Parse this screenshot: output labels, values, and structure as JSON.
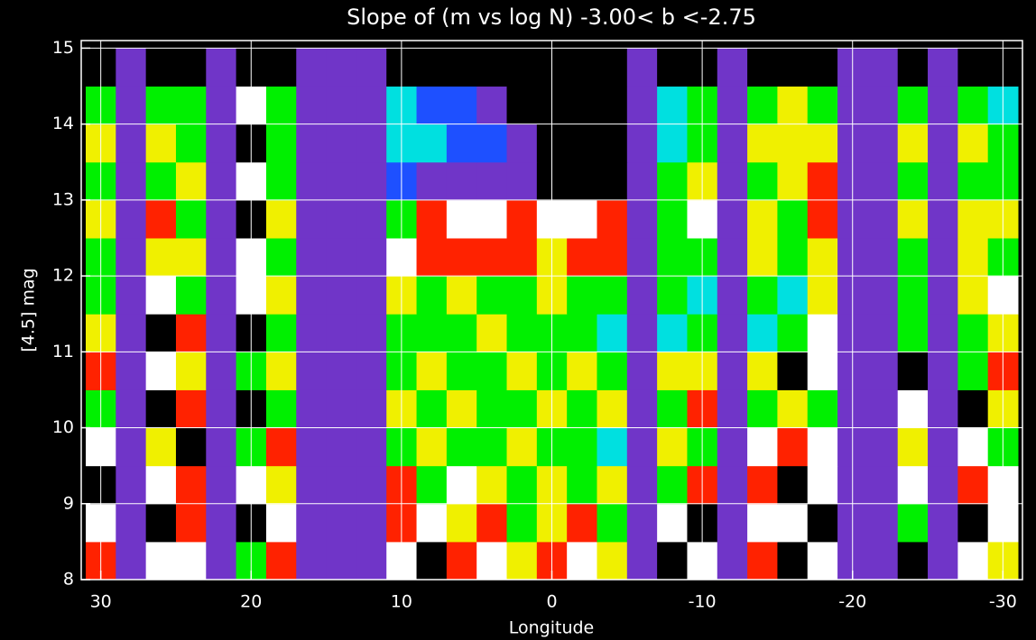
{
  "chart_data": {
    "type": "heatmap",
    "title": "Slope of (m vs log N) -3.00< b <-2.75",
    "xlabel": "Longitude",
    "ylabel": "[4.5] mag",
    "xlim": [
      31.3,
      -31.3
    ],
    "ylim": [
      8,
      15.1
    ],
    "xticks": [
      30,
      20,
      10,
      0,
      -10,
      -20,
      -30
    ],
    "yticks": [
      8,
      9,
      10,
      11,
      12,
      13,
      14,
      15
    ],
    "grid": true,
    "grid_color": "#ffffff",
    "colorscale": [
      "#000000",
      "#7035c8",
      "#1e50ff",
      "#00e0e0",
      "#00f000",
      "#f0f000",
      "#ff2200",
      "#ffffff"
    ],
    "x": [
      30,
      28,
      26,
      24,
      22,
      20,
      18,
      16,
      14,
      12,
      10,
      8,
      6,
      4,
      2,
      0,
      -2,
      -4,
      -6,
      -8,
      -10,
      -12,
      -14,
      -16,
      -18,
      -20,
      -22,
      -24,
      -26,
      -28,
      -30
    ],
    "y": [
      8.25,
      8.75,
      9.25,
      9.75,
      10.25,
      10.75,
      11.25,
      11.75,
      12.25,
      12.75,
      13.25,
      13.75,
      14.25,
      14.75
    ],
    "z": [
      [
        6,
        1,
        7,
        7,
        1,
        4,
        6,
        1,
        1,
        1,
        7,
        0,
        6,
        7,
        5,
        6,
        7,
        5,
        1,
        0,
        7,
        1,
        6,
        0,
        7,
        1,
        1,
        0,
        1,
        7,
        5
      ],
      [
        7,
        1,
        0,
        6,
        1,
        0,
        7,
        1,
        1,
        1,
        6,
        7,
        5,
        6,
        4,
        5,
        6,
        4,
        1,
        7,
        0,
        1,
        7,
        7,
        0,
        1,
        1,
        4,
        1,
        0,
        7
      ],
      [
        0,
        1,
        7,
        6,
        1,
        7,
        5,
        1,
        1,
        1,
        6,
        4,
        7,
        5,
        4,
        5,
        4,
        5,
        1,
        4,
        6,
        1,
        6,
        0,
        7,
        1,
        1,
        7,
        1,
        6,
        7
      ],
      [
        7,
        1,
        5,
        0,
        1,
        4,
        6,
        1,
        1,
        1,
        4,
        5,
        4,
        4,
        5,
        4,
        4,
        3,
        1,
        5,
        4,
        1,
        7,
        6,
        7,
        1,
        1,
        5,
        1,
        7,
        4
      ],
      [
        4,
        1,
        0,
        6,
        1,
        0,
        4,
        1,
        1,
        1,
        5,
        4,
        5,
        4,
        4,
        5,
        4,
        5,
        1,
        4,
        6,
        1,
        4,
        5,
        4,
        1,
        1,
        7,
        1,
        0,
        5
      ],
      [
        6,
        1,
        7,
        5,
        1,
        4,
        5,
        1,
        1,
        1,
        4,
        5,
        4,
        4,
        5,
        4,
        5,
        4,
        1,
        5,
        5,
        1,
        5,
        0,
        7,
        1,
        1,
        0,
        1,
        4,
        6
      ],
      [
        5,
        1,
        0,
        6,
        1,
        0,
        4,
        1,
        1,
        1,
        4,
        4,
        4,
        5,
        4,
        4,
        4,
        3,
        1,
        3,
        4,
        1,
        3,
        4,
        7,
        1,
        1,
        4,
        1,
        4,
        5
      ],
      [
        4,
        1,
        7,
        4,
        1,
        7,
        5,
        1,
        1,
        1,
        5,
        4,
        5,
        4,
        4,
        5,
        4,
        4,
        1,
        4,
        3,
        1,
        4,
        3,
        5,
        1,
        1,
        4,
        1,
        5,
        7
      ],
      [
        4,
        1,
        5,
        5,
        1,
        7,
        4,
        1,
        1,
        1,
        7,
        6,
        6,
        6,
        6,
        5,
        6,
        6,
        1,
        4,
        4,
        1,
        5,
        4,
        5,
        1,
        1,
        4,
        1,
        5,
        4
      ],
      [
        5,
        1,
        6,
        4,
        1,
        0,
        5,
        1,
        1,
        1,
        4,
        6,
        7,
        7,
        6,
        7,
        7,
        6,
        1,
        4,
        7,
        1,
        5,
        4,
        6,
        1,
        1,
        5,
        1,
        5,
        5
      ],
      [
        4,
        1,
        4,
        5,
        1,
        7,
        4,
        1,
        1,
        1,
        2,
        1,
        1,
        1,
        1,
        0,
        0,
        0,
        1,
        4,
        5,
        1,
        4,
        5,
        6,
        1,
        1,
        4,
        1,
        4,
        4
      ],
      [
        5,
        1,
        5,
        4,
        1,
        0,
        4,
        1,
        1,
        1,
        3,
        3,
        2,
        2,
        1,
        0,
        0,
        0,
        1,
        3,
        4,
        1,
        5,
        5,
        5,
        1,
        1,
        5,
        1,
        5,
        4
      ],
      [
        4,
        1,
        4,
        4,
        1,
        7,
        4,
        1,
        1,
        1,
        3,
        2,
        2,
        1,
        0,
        0,
        0,
        0,
        1,
        3,
        4,
        1,
        4,
        5,
        4,
        1,
        1,
        4,
        1,
        4,
        3
      ],
      [
        0,
        1,
        0,
        0,
        1,
        0,
        0,
        1,
        1,
        1,
        0,
        0,
        0,
        0,
        0,
        0,
        0,
        0,
        1,
        0,
        0,
        1,
        0,
        0,
        0,
        1,
        1,
        0,
        1,
        0,
        0
      ]
    ]
  }
}
